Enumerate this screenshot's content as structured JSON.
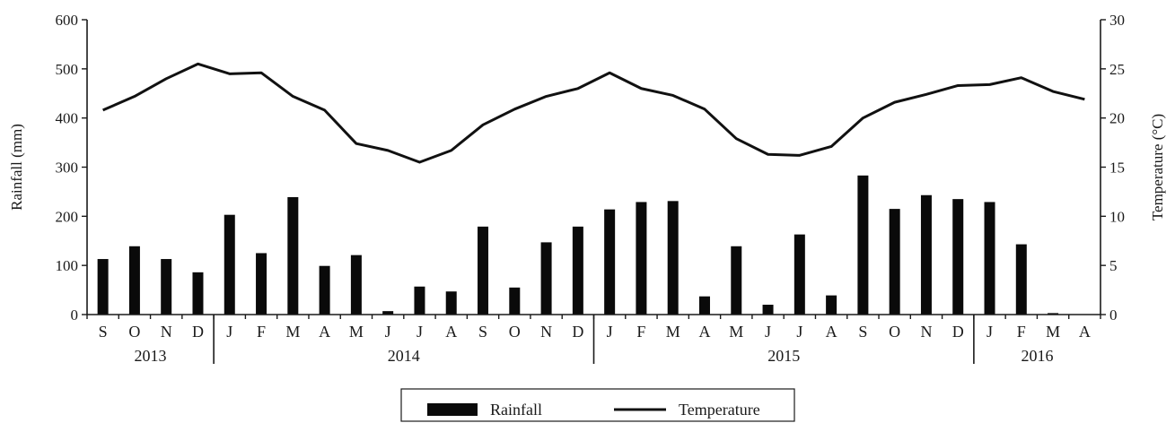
{
  "chart_data": {
    "type": "bar",
    "categories": [
      "S",
      "O",
      "N",
      "D",
      "J",
      "F",
      "M",
      "A",
      "M",
      "J",
      "J",
      "A",
      "S",
      "O",
      "N",
      "D",
      "J",
      "F",
      "M",
      "A",
      "M",
      "J",
      "J",
      "A",
      "S",
      "O",
      "N",
      "D",
      "J",
      "F",
      "M",
      "A"
    ],
    "years": [
      {
        "label": "2013",
        "start": 0,
        "end": 3
      },
      {
        "label": "2014",
        "start": 4,
        "end": 15
      },
      {
        "label": "2015",
        "start": 16,
        "end": 27
      },
      {
        "label": "2016",
        "start": 28,
        "end": 31
      }
    ],
    "series": [
      {
        "name": "Rainfall",
        "kind": "bar",
        "axis": "left",
        "values": [
          113,
          139,
          113,
          86,
          203,
          125,
          239,
          99,
          121,
          7,
          57,
          47,
          179,
          55,
          147,
          179,
          214,
          229,
          231,
          37,
          139,
          20,
          163,
          39,
          283,
          215,
          243,
          235,
          229,
          143,
          3,
          0
        ]
      },
      {
        "name": "Temperature",
        "kind": "line",
        "axis": "right",
        "values": [
          20.8,
          22.2,
          24.0,
          25.5,
          24.5,
          24.6,
          22.2,
          20.8,
          17.4,
          16.7,
          15.5,
          16.7,
          19.3,
          20.9,
          22.2,
          23.0,
          24.6,
          23.0,
          22.3,
          20.9,
          17.9,
          16.3,
          16.2,
          17.1,
          20.0,
          21.6,
          22.4,
          23.3,
          23.4,
          24.1,
          22.7,
          21.9
        ]
      }
    ],
    "ylabel": "Rainfall (mm)",
    "ylim": [
      0,
      600
    ],
    "yticks": [
      0,
      100,
      200,
      300,
      400,
      500,
      600
    ],
    "y2label": "Temperature (°C)",
    "y2lim": [
      0,
      30
    ],
    "y2ticks": [
      0,
      5,
      10,
      15,
      20,
      25,
      30
    ],
    "legend": {
      "position": "bottom-center",
      "items": [
        "Rainfall",
        "Temperature"
      ]
    },
    "grid": false
  },
  "colors": {
    "bar": "#0a0a0a",
    "line": "#111111",
    "axis": "#1a1a1a"
  }
}
